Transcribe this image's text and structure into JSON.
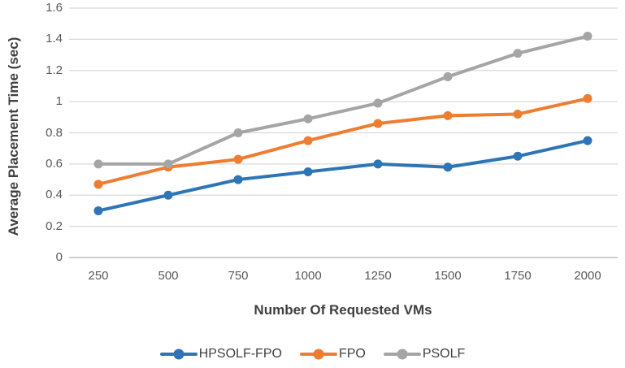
{
  "chart_data": {
    "type": "line",
    "title": "",
    "xlabel": "Number Of Requested VMs",
    "ylabel": "Average Placement Time (sec)",
    "categories": [
      "250",
      "500",
      "750",
      "1000",
      "1250",
      "1500",
      "1750",
      "2000"
    ],
    "series": [
      {
        "name": "HPSOLF-FPO",
        "color": "#2E75B6",
        "values": [
          0.3,
          0.4,
          0.5,
          0.55,
          0.6,
          0.58,
          0.65,
          0.75
        ]
      },
      {
        "name": "FPO",
        "color": "#ED7D31",
        "values": [
          0.47,
          0.58,
          0.63,
          0.75,
          0.86,
          0.91,
          0.92,
          1.02
        ]
      },
      {
        "name": "PSOLF",
        "color": "#A5A5A5",
        "values": [
          0.6,
          0.6,
          0.8,
          0.89,
          0.99,
          1.16,
          1.31,
          1.42
        ]
      }
    ],
    "ylim": [
      0,
      1.6
    ],
    "yticks": {
      "values": [
        0,
        0.2,
        0.4,
        0.6,
        0.8,
        1.0,
        1.2,
        1.4,
        1.6
      ],
      "labels": [
        "0",
        "0.2",
        "0.4",
        "0.6",
        "0.8",
        "1",
        "1.2",
        "1.4",
        "1.6"
      ]
    },
    "grid": true,
    "legend_position": "bottom",
    "marker": "circle",
    "colors": {
      "gridline": "#D9D9D9",
      "axis_line": "#BFBFBF",
      "tick_text": "#595959",
      "title_text": "#3F3F3F"
    }
  }
}
